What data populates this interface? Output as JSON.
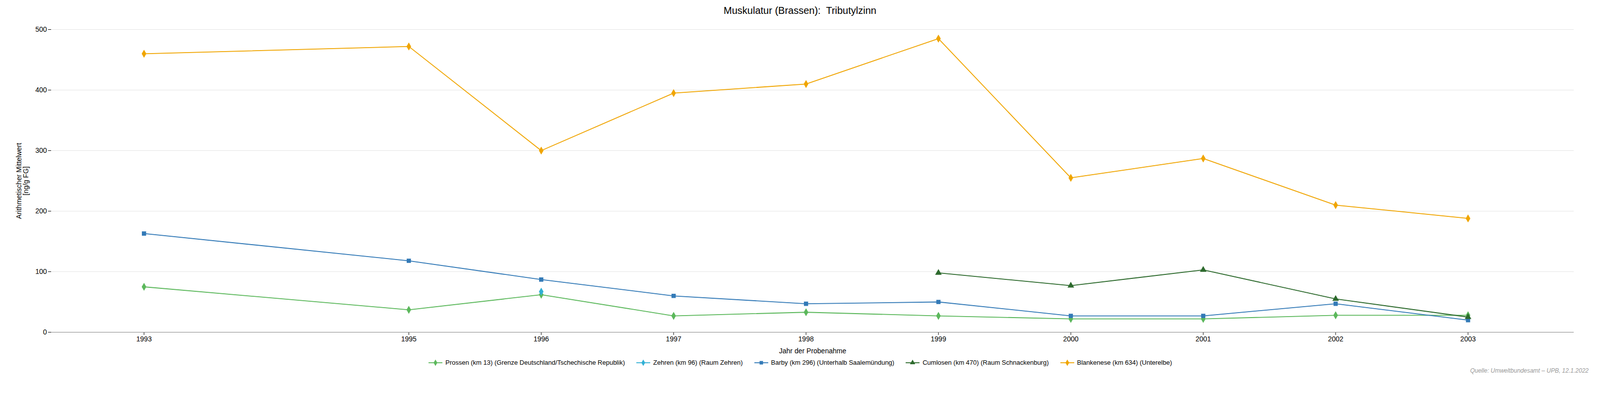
{
  "chart_data": {
    "type": "line",
    "title": "Muskulatur (Brassen):  Tributylzinn",
    "xlabel": "Jahr der Probenahme",
    "ylabel": "Arithmetischer Mittelwert\n[ng/g FG]",
    "x": [
      1993,
      1995,
      1996,
      1997,
      1998,
      1999,
      2000,
      2001,
      2002,
      2003
    ],
    "series": [
      {
        "name": "Prossen (km 13) (Grenze Deutschland/Tschechische Republik)",
        "color": "#5cb85c",
        "marker": "diamond",
        "values": [
          75,
          37,
          62,
          27,
          33,
          27,
          22,
          22,
          28,
          28
        ]
      },
      {
        "name": "Zehren (km 96) (Raum Zehren)",
        "color": "#31b0d5",
        "marker": "diamond",
        "values": [
          null,
          null,
          67,
          null,
          null,
          null,
          null,
          null,
          null,
          null
        ]
      },
      {
        "name": "Barby (km 296) (Unterhalb Saalemündung)",
        "color": "#337ab7",
        "marker": "square",
        "values": [
          163,
          118,
          87,
          60,
          47,
          50,
          27,
          27,
          47,
          20
        ]
      },
      {
        "name": "Cumlosen (km 470) (Raum Schnackenburg)",
        "color": "#2d6a2d",
        "marker": "triangle",
        "values": [
          null,
          null,
          null,
          null,
          null,
          98,
          77,
          103,
          55,
          25
        ]
      },
      {
        "name": "Blankenese (km 634) (Unterelbe)",
        "color": "#f0a500",
        "marker": "diamond",
        "values": [
          460,
          472,
          300,
          395,
          410,
          485,
          255,
          287,
          210,
          188
        ]
      }
    ],
    "xlim": [
      1992.3,
      2003.8
    ],
    "xticks": [
      1993,
      1995,
      1996,
      1997,
      1998,
      1999,
      2000,
      2001,
      2002,
      2003
    ],
    "ylim": [
      0,
      500
    ],
    "yticks": [
      0,
      100,
      200,
      300,
      400,
      500
    ],
    "grid": true,
    "legend": "bottom",
    "annotations": [
      "Quelle: Umweltbundesamt – UPB, 12.1.2022"
    ]
  }
}
